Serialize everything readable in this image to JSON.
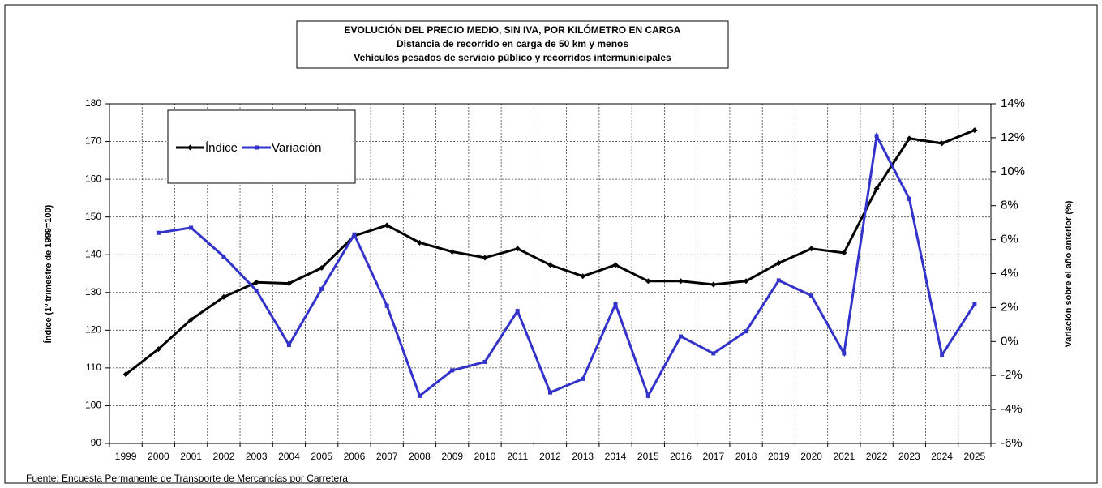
{
  "chart_data": {
    "type": "line",
    "title": [
      "EVOLUCIÓN  DEL PRECIO MEDIO, SIN IVA, POR KILÓMETRO  EN CARGA",
      "Distancia de recorrido en carga de 50 km y menos",
      "Vehículos pesados de servicio público y recorridos intermunicipales"
    ],
    "y_label": "Índice (1º trimestre de 1999=100)",
    "y2_label": "Variación sobre el año anterior (%)",
    "source": "Fuente: Encuesta Permanente de Transporte de Mercancías por Carretera.",
    "categories": [
      "1999",
      "2000",
      "2001",
      "2002",
      "2003",
      "2004",
      "2005",
      "2006",
      "2007",
      "2008",
      "2009",
      "2010",
      "2011",
      "2012",
      "2013",
      "2014",
      "2015",
      "2016",
      "2017",
      "2018",
      "2019",
      "2020",
      "2021",
      "2022",
      "2023",
      "2024",
      "2025"
    ],
    "series": [
      {
        "name": "Índice",
        "color": "#000000",
        "values": [
          108.3,
          115,
          122.8,
          128.8,
          132.7,
          132.4,
          136.5,
          145,
          147.8,
          143.2,
          140.8,
          139.2,
          141.6,
          137.3,
          134.3,
          137.3,
          133,
          133,
          132.1,
          133,
          137.8,
          141.6,
          140.5,
          157.5,
          170.8,
          169.5,
          173
        ]
      },
      {
        "name": "Variación",
        "color": "#3333cc",
        "axis": "y2",
        "values": [
          null,
          6.4,
          6.7,
          5.0,
          3.0,
          -0.2,
          3.1,
          6.3,
          2.1,
          -3.2,
          -1.7,
          -1.2,
          1.8,
          -3.0,
          -2.2,
          2.2,
          -3.2,
          0.3,
          -0.7,
          0.6,
          3.6,
          2.7,
          -0.7,
          12.1,
          8.4,
          -0.8,
          2.2
        ]
      }
    ],
    "ylim": [
      90,
      180
    ],
    "yticks": [
      90,
      100,
      110,
      120,
      130,
      140,
      150,
      160,
      170,
      180
    ],
    "y2lim": [
      -6,
      14
    ],
    "y2ticks": [
      {
        "value": -6,
        "label": "-6%"
      },
      {
        "value": -4,
        "label": "-4%"
      },
      {
        "value": -2,
        "label": "-2%"
      },
      {
        "value": 0,
        "label": "0%"
      },
      {
        "value": 2,
        "label": "2%"
      },
      {
        "value": 4,
        "label": "4%"
      },
      {
        "value": 6,
        "label": "6%"
      },
      {
        "value": 8,
        "label": "8%"
      },
      {
        "value": 10,
        "label": "10%"
      },
      {
        "value": 12,
        "label": "12%"
      },
      {
        "value": 14,
        "label": "14%"
      }
    ],
    "grid": true,
    "legend": "upper left"
  }
}
